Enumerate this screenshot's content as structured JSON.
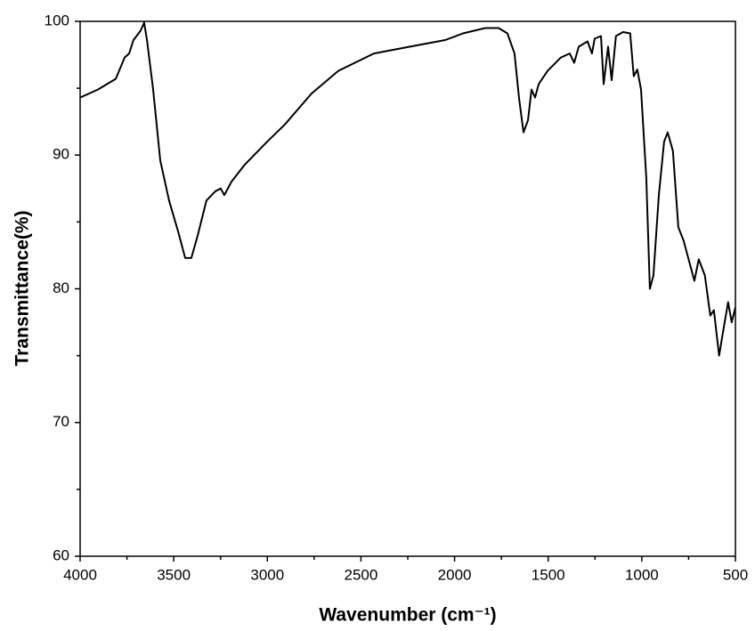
{
  "chart_data": {
    "type": "line",
    "xlabel": "Wavenumber (cm⁻¹)",
    "ylabel": "Transmittance(%)",
    "xlim": [
      4000,
      500
    ],
    "ylim": [
      60,
      100
    ],
    "xticks": [
      4000,
      3500,
      3000,
      2500,
      2000,
      1500,
      1000,
      500
    ],
    "xticks_minor": [
      3750,
      3250,
      2750,
      2250,
      1750,
      1250,
      750
    ],
    "yticks": [
      60,
      70,
      80,
      90,
      100
    ],
    "yticks_minor": [
      65,
      75,
      85,
      95
    ],
    "series": [
      {
        "color": "#000000",
        "x": [
          4000,
          3905,
          3810,
          3762,
          3738,
          3715,
          3677,
          3658,
          3643,
          3610,
          3572,
          3525,
          3477,
          3439,
          3406,
          3372,
          3325,
          3277,
          3249,
          3230,
          3192,
          3120,
          3001,
          2906,
          2764,
          2621,
          2431,
          2241,
          2050,
          1955,
          1836,
          1765,
          1718,
          1680,
          1656,
          1632,
          1608,
          1589,
          1570,
          1551,
          1503,
          1432,
          1385,
          1361,
          1337,
          1290,
          1266,
          1252,
          1218,
          1204,
          1180,
          1161,
          1138,
          1100,
          1062,
          1043,
          1024,
          1004,
          976,
          957,
          938,
          909,
          881,
          862,
          834,
          805,
          777,
          719,
          696,
          663,
          634,
          615,
          587,
          567,
          539,
          520,
          500
        ],
        "values": [
          94.3,
          94.9,
          95.7,
          97.3,
          97.6,
          98.6,
          99.3,
          99.9,
          98.6,
          94.9,
          89.6,
          86.6,
          84.3,
          82.3,
          82.3,
          84.0,
          86.6,
          87.3,
          87.5,
          87.0,
          88.0,
          89.3,
          91.0,
          92.3,
          94.6,
          96.3,
          97.6,
          98.1,
          98.6,
          99.1,
          99.5,
          99.5,
          99.1,
          97.6,
          94.3,
          91.7,
          92.6,
          94.9,
          94.3,
          95.3,
          96.3,
          97.3,
          97.6,
          96.9,
          98.1,
          98.5,
          97.6,
          98.7,
          98.9,
          95.3,
          98.1,
          95.6,
          98.9,
          99.2,
          99.1,
          95.9,
          96.4,
          94.9,
          88.3,
          80.0,
          81.0,
          87.0,
          91.0,
          91.7,
          90.3,
          84.6,
          83.6,
          80.6,
          82.2,
          81.0,
          78.0,
          78.4,
          75.0,
          76.7,
          79.0,
          77.5,
          78.6
        ]
      }
    ]
  }
}
